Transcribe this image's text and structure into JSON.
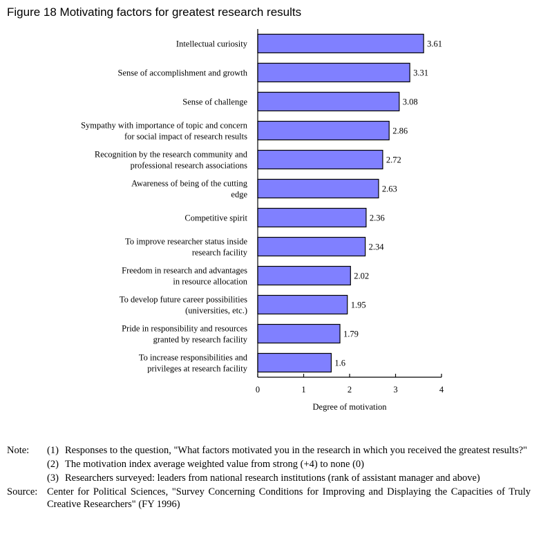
{
  "figure_title": "Figure 18 Motivating factors for greatest research results",
  "colors": {
    "bar_fill": "#8080ff",
    "bar_stroke": "#000000"
  },
  "chart_data": {
    "type": "bar",
    "orientation": "horizontal",
    "categories": [
      [
        "Intellectual curiosity"
      ],
      [
        "Sense of accomplishment and growth"
      ],
      [
        "Sense of challenge"
      ],
      [
        "Sympathy with importance of topic and concern",
        "for social impact of research results"
      ],
      [
        "Recognition by the research community and",
        "professional research associations"
      ],
      [
        "Awareness of being of the cutting",
        "edge"
      ],
      [
        "Competitive spirit"
      ],
      [
        "To improve researcher status inside",
        "research facility"
      ],
      [
        "Freedom in research and advantages",
        "in resource allocation"
      ],
      [
        "To develop future career possibilities",
        "(universities, etc.)"
      ],
      [
        "Pride in responsibility and resources",
        "granted by research facility"
      ],
      [
        "To increase responsibilities and",
        "privileges at research facility"
      ]
    ],
    "values": [
      3.61,
      3.31,
      3.08,
      2.86,
      2.72,
      2.63,
      2.36,
      2.34,
      2.02,
      1.95,
      1.79,
      1.6
    ],
    "value_labels": [
      "3.61",
      "3.31",
      "3.08",
      "2.86",
      "2.72",
      "2.63",
      "2.36",
      "2.34",
      "2.02",
      "1.95",
      "1.79",
      "1.6"
    ],
    "xlabel": "Degree of motivation",
    "xlim": [
      0,
      4
    ],
    "xticks": [
      "0",
      "1",
      "2",
      "3",
      "4"
    ],
    "grid": false
  },
  "notes": {
    "note_label": "Note:",
    "items": [
      {
        "num": "(1)",
        "text": "Responses to the question, \"What factors motivated you in the research in which you received the greatest results?\""
      },
      {
        "num": "(2)",
        "text": "The motivation index average weighted value from strong (+4) to none (0)"
      },
      {
        "num": "(3)",
        "text": "Researchers surveyed: leaders from national research institutions (rank of assistant manager and above)"
      }
    ],
    "source_label": "Source:",
    "source_text": "Center for Political Sciences, \"Survey Concerning Conditions for Improving and Displaying the Capacities of Truly Creative Researchers\" (FY 1996)"
  }
}
